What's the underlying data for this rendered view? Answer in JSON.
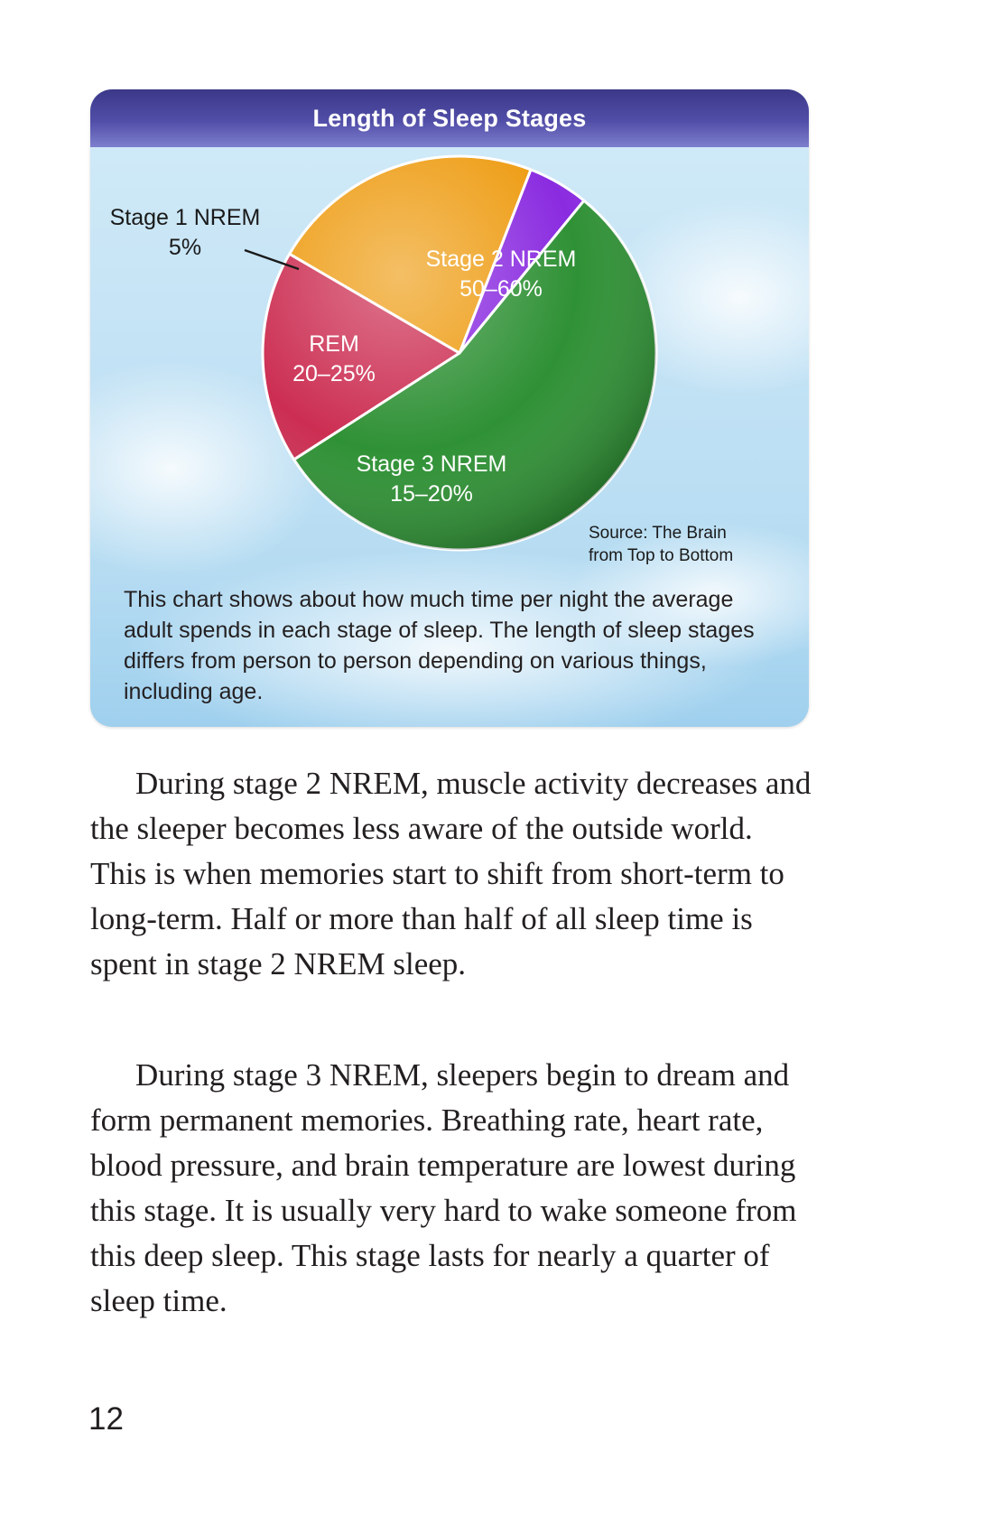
{
  "chart_data": {
    "type": "pie",
    "title": "Length of Sleep Stages",
    "slices": [
      {
        "name": "Stage 1 NREM",
        "label": "5%",
        "value": 5,
        "color": "#8a2be0"
      },
      {
        "name": "Stage 2 NREM",
        "label": "50–60%",
        "value": 55,
        "color": "#2f9135"
      },
      {
        "name": "Stage 3 NREM",
        "label": "15–20%",
        "value": 17.5,
        "color": "#cc2e52"
      },
      {
        "name": "REM",
        "label": "20–25%",
        "value": 22.5,
        "color": "#ee9c12"
      }
    ],
    "source": [
      "Source: The Brain",
      "from Top to Bottom"
    ],
    "caption": "This chart shows about how much time per night the average adult spends in each stage of sleep. The length of sleep stages differs from person to person depending on various things, including age."
  },
  "paragraphs": [
    "During stage 2 NREM, muscle activity decreases and the sleeper becomes less aware of the outside world. This is when memories start to shift from short-term to long-term. Half or more than half of all sleep time is spent in stage 2 NREM sleep.",
    "During stage 3 NREM, sleepers begin to dream and form permanent memories. Breathing rate, heart rate, blood pressure, and brain temperature are lowest during this stage. It is usually very hard to wake someone from this deep sleep. This stage lasts for nearly a quarter of sleep time."
  ],
  "page_number": "12"
}
